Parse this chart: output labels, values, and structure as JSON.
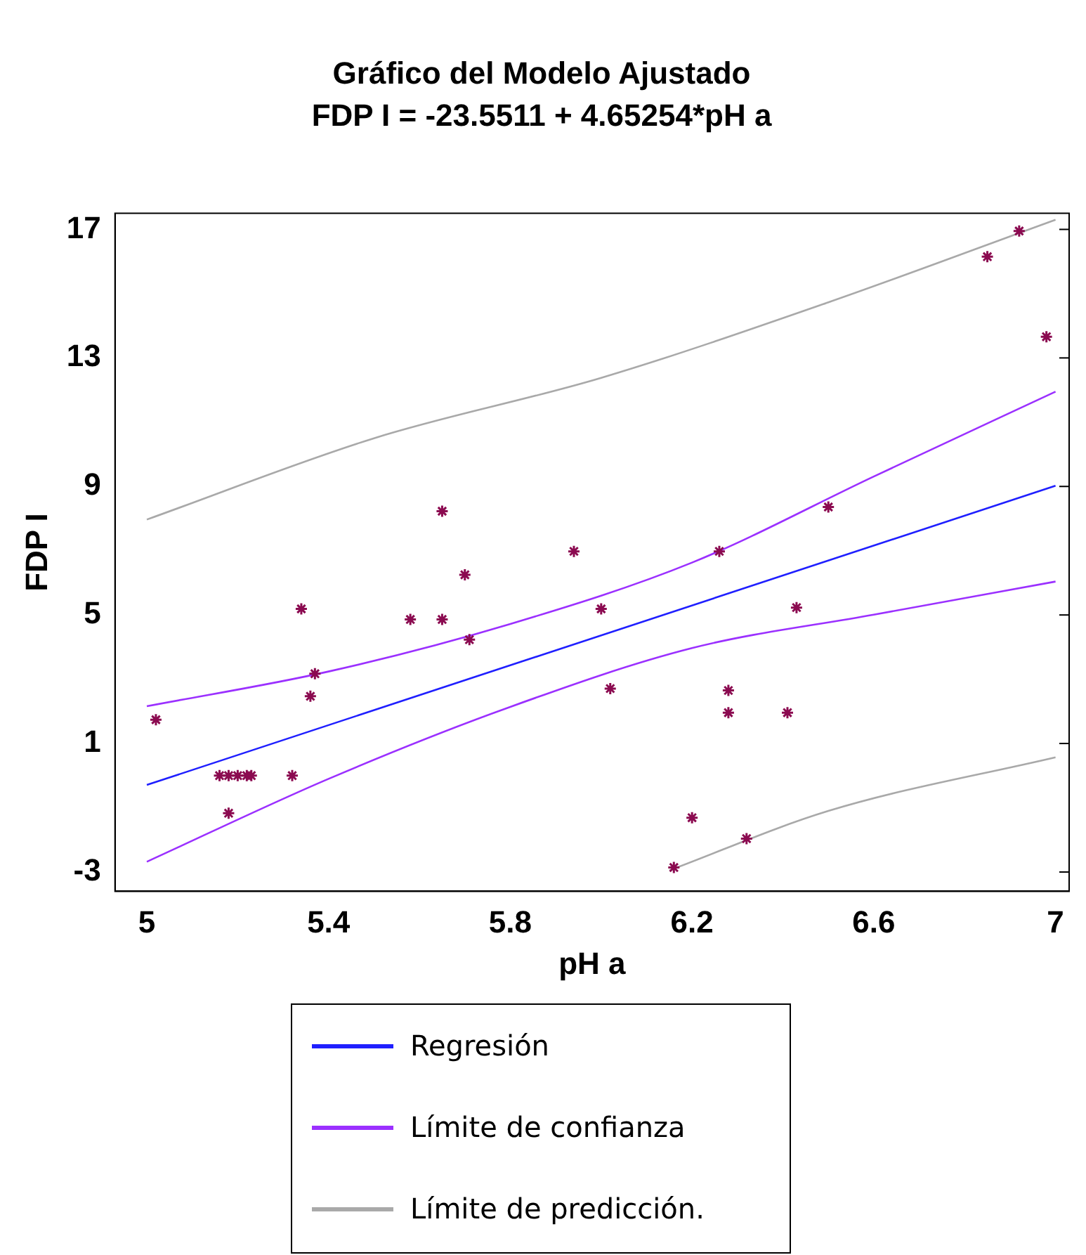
{
  "chart_data": {
    "type": "scatter",
    "title": "Gráfico del Modelo Ajustado",
    "subtitle": "FDP I = -23.5511 + 4.65254*pH a",
    "xlabel": "pH a",
    "ylabel": "FDP I",
    "xlim": [
      4.93,
      7.03
    ],
    "ylim": [
      -3.6,
      17.5
    ],
    "xticks": [
      5,
      5.4,
      5.8,
      6.2,
      6.6,
      7
    ],
    "yticks": [
      -3,
      1,
      5,
      9,
      13,
      17
    ],
    "grid": false,
    "legend": "bottom",
    "series": [
      {
        "marker": "cross",
        "color": "#8b0a50",
        "x": [
          5.02,
          5.16,
          5.18,
          5.2,
          5.22,
          5.23,
          5.32,
          5.18,
          5.34,
          5.37,
          5.36,
          5.58,
          5.65,
          5.65,
          5.7,
          5.71,
          5.94,
          6.0,
          6.02,
          6.26,
          6.28,
          6.28,
          6.41,
          6.43,
          6.5,
          6.2,
          6.32,
          6.16,
          6.85,
          6.92,
          6.98
        ],
        "values": [
          1.74,
          0.0,
          0.0,
          0.0,
          0.0,
          0.0,
          0.0,
          -1.17,
          5.19,
          3.17,
          2.47,
          4.86,
          4.86,
          8.23,
          6.25,
          4.23,
          6.98,
          5.19,
          2.71,
          6.98,
          2.65,
          1.96,
          1.96,
          5.23,
          8.36,
          -1.31,
          -1.96,
          -2.86,
          16.15,
          16.95,
          13.66
        ]
      },
      {
        "type": "line",
        "marker": "none",
        "name": "Regresión",
        "color": "#1f1fff",
        "x": [
          5,
          7
        ],
        "values": [
          -0.29,
          9.02
        ]
      },
      {
        "type": "line",
        "marker": "none",
        "name": "Límite de confianza",
        "color": "#9b30ff",
        "x": [
          5,
          5.4,
          5.8,
          6.2,
          6.6,
          7
        ],
        "values": [
          2.16,
          3.24,
          4.72,
          6.63,
          9.31,
          11.95
        ]
      },
      {
        "type": "line",
        "marker": "none",
        "color": "#9b30ff",
        "x": [
          5,
          5.4,
          5.8,
          6.2,
          6.6,
          7
        ],
        "values": [
          -2.68,
          -0.1,
          2.14,
          3.97,
          5.01,
          6.04
        ]
      },
      {
        "type": "line",
        "marker": "none",
        "name": "Límite de predicción.",
        "color": "#a9a9a9",
        "x": [
          5,
          5.5,
          6,
          6.5,
          7
        ],
        "values": [
          7.97,
          10.5,
          12.38,
          14.73,
          17.3
        ]
      },
      {
        "type": "line",
        "marker": "none",
        "color": "#a9a9a9",
        "x": [
          6.15,
          6.5,
          7
        ],
        "values": [
          -2.95,
          -1.1,
          0.57
        ]
      }
    ]
  }
}
